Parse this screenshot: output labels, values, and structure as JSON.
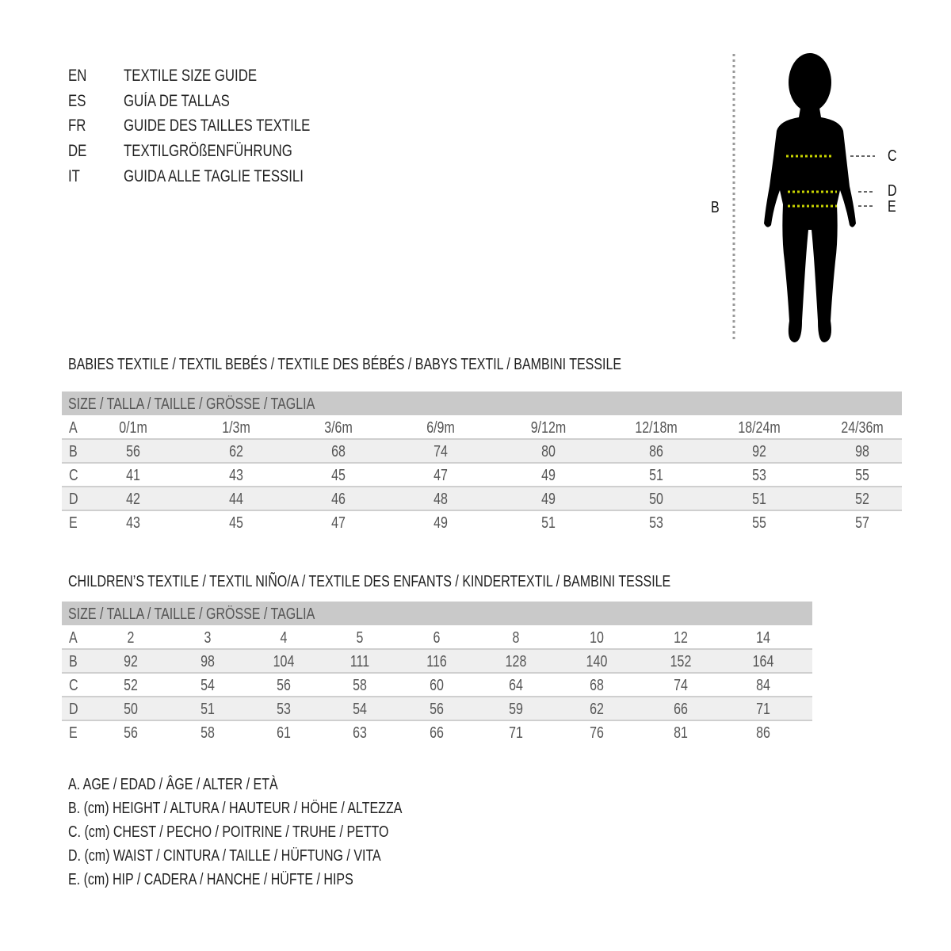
{
  "title_lines": [
    {
      "code": "EN",
      "text": "TEXTILE SIZE GUIDE"
    },
    {
      "code": "ES",
      "text": "GUÍA DE TALLAS"
    },
    {
      "code": "FR",
      "text": "GUIDE DES TAILLES TEXTILE"
    },
    {
      "code": "DE",
      "text": "TEXTILGRÖßENFÜHRUNG"
    },
    {
      "code": "IT",
      "text": "GUIDA ALLE TAGLIE TESSILI"
    }
  ],
  "figure": {
    "labels": {
      "b": "B",
      "c": "C",
      "d": "D",
      "e": "E"
    },
    "measure_color": "#c8d400"
  },
  "babies": {
    "title": "BABIES TEXTILE / TEXTIL BEBÉS / TEXTILE DES BÉBÉS / BABYS TEXTIL  / BAMBINI TESSILE",
    "header": "SIZE / TALLA / TAILLE / GRÖSSE / TAGLIA",
    "rows": [
      {
        "label": "A",
        "values": [
          "0/1m",
          "1/3m",
          "3/6m",
          "6/9m",
          "9/12m",
          "12/18m",
          "18/24m",
          "24/36m"
        ]
      },
      {
        "label": "B",
        "values": [
          "56",
          "62",
          "68",
          "74",
          "80",
          "86",
          "92",
          "98"
        ]
      },
      {
        "label": "C",
        "values": [
          "41",
          "43",
          "45",
          "47",
          "49",
          "51",
          "53",
          "55"
        ]
      },
      {
        "label": "D",
        "values": [
          "42",
          "44",
          "46",
          "48",
          "49",
          "50",
          "51",
          "52"
        ]
      },
      {
        "label": "E",
        "values": [
          "43",
          "45",
          "47",
          "49",
          "51",
          "53",
          "55",
          "57"
        ]
      }
    ]
  },
  "children": {
    "title": "CHILDREN’S TEXTILE / TEXTIL NIÑO/A / TEXTILE DES ENFANTS / KINDERTEXTIL / BAMBINI TESSILE",
    "header": "SIZE / TALLA / TAILLE / GRÖSSE / TAGLIA",
    "rows": [
      {
        "label": "A",
        "values": [
          "2",
          "3",
          "4",
          "5",
          "6",
          "8",
          "10",
          "12",
          "14"
        ]
      },
      {
        "label": "B",
        "values": [
          "92",
          "98",
          "104",
          "111",
          "116",
          "128",
          "140",
          "152",
          "164"
        ]
      },
      {
        "label": "C",
        "values": [
          "52",
          "54",
          "56",
          "58",
          "60",
          "64",
          "68",
          "74",
          "84"
        ]
      },
      {
        "label": "D",
        "values": [
          "50",
          "51",
          "53",
          "54",
          "56",
          "59",
          "62",
          "66",
          "71"
        ]
      },
      {
        "label": "E",
        "values": [
          "56",
          "58",
          "61",
          "63",
          "66",
          "71",
          "76",
          "81",
          "86"
        ]
      }
    ]
  },
  "legend": [
    "A. AGE / EDAD / ÂGE / ALTER / ETÀ",
    "B. (cm) HEIGHT / ALTURA / HAUTEUR / HÖHE / ALTEZZA",
    "C. (cm) CHEST / PECHO / POITRINE / TRUHE / PETTO",
    "D. (cm) WAIST / CINTURA / TAILLE / HÜFTUNG / VITA",
    "E. (cm) HIP / CADERA / HANCHE / HÜFTE / HIPS"
  ]
}
